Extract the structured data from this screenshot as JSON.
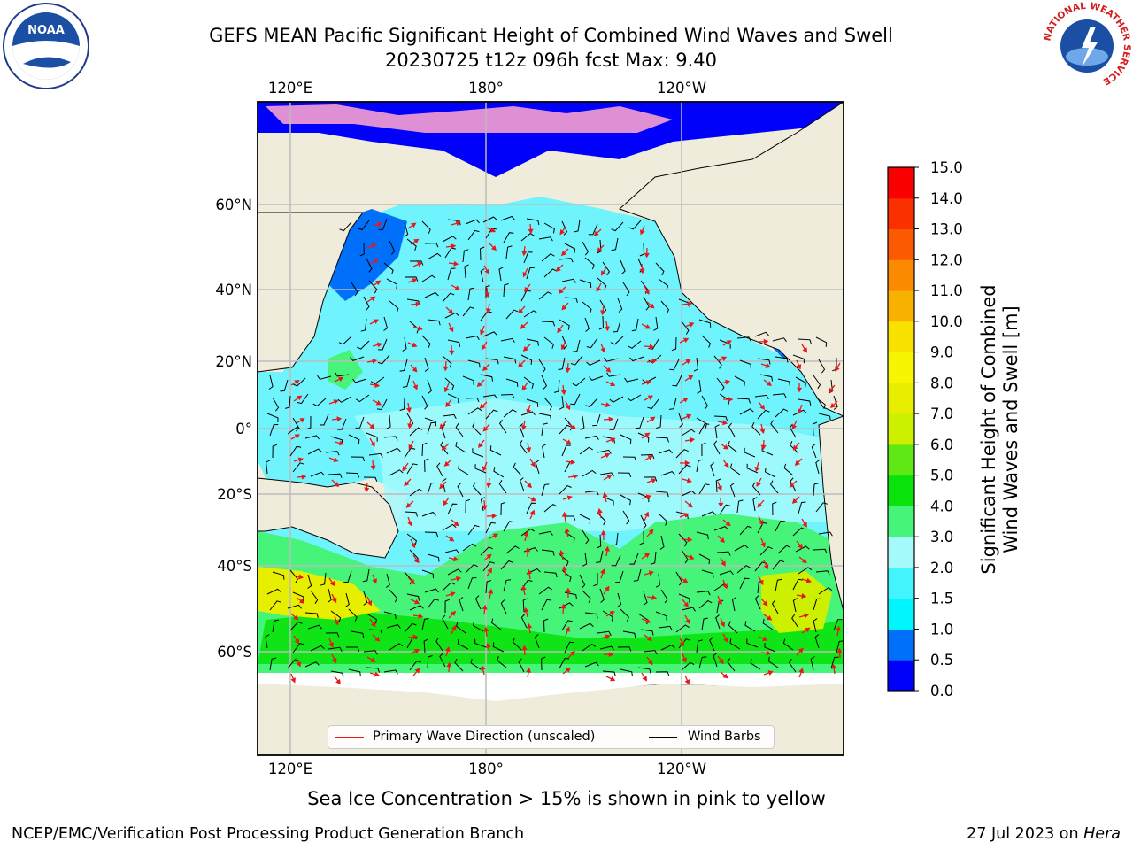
{
  "title": {
    "line1": "GEFS MEAN Pacific Significant Height of Combined Wind Waves and Swell",
    "line2": "20230725 t12z 096h fcst   Max: 9.40"
  },
  "map": {
    "top_lon_labels": [
      "120°E",
      "180°",
      "120°W"
    ],
    "bottom_lon_labels": [
      "120°E",
      "180°",
      "120°W"
    ],
    "lat_labels": [
      "60°N",
      "40°N",
      "20°N",
      "0°",
      "20°S",
      "40°S",
      "60°S"
    ],
    "land_color": "#efecdc",
    "ocean_color": "#6ff4fd",
    "grid_color": "#bbbbbb"
  },
  "legend": {
    "wave_direction": "Primary Wave Direction (unscaled)",
    "wave_color": "#e8181a",
    "wind_barbs": "Wind Barbs",
    "barb_color": "#000000"
  },
  "colorbar": {
    "label_line1": "Significant Height of Combined",
    "label_line2": "Wind Waves and Swell [m]",
    "ticks": [
      "0.0",
      "0.5",
      "1.0",
      "1.5",
      "2.0",
      "3.0",
      "4.0",
      "5.0",
      "6.0",
      "7.0",
      "8.0",
      "9.0",
      "10.0",
      "11.0",
      "12.0",
      "13.0",
      "14.0",
      "15.0"
    ],
    "colors": [
      "#0000fb",
      "#0070fb",
      "#00f5fd",
      "#41f4fd",
      "#a4f9fb",
      "#47f47a",
      "#09e30b",
      "#60e814",
      "#ccf000",
      "#e7ee00",
      "#f7f600",
      "#f9e200",
      "#f9b100",
      "#fb8a00",
      "#fb5a00",
      "#fb3000",
      "#fb0000"
    ]
  },
  "note": "Sea Ice Concentration > 15% is shown in pink to yellow",
  "footer": {
    "left": "NCEP/EMC/Verification Post Processing Product Generation Branch",
    "right_prefix": "27 Jul 2023 on ",
    "right_host": "Hera"
  },
  "logos": {
    "noaa_text": "NOAA",
    "nws_text": "NATIONAL WEATHER SERVICE"
  }
}
